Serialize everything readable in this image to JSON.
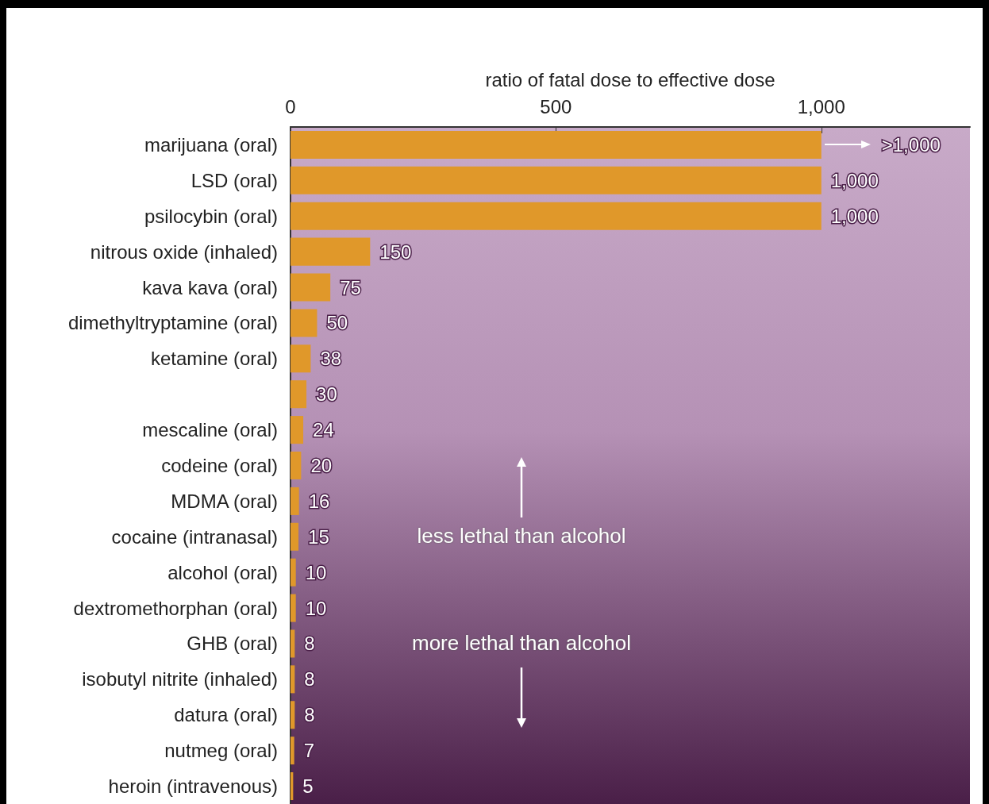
{
  "chart_data": {
    "type": "bar",
    "orientation": "horizontal",
    "xlabel": "ratio of fatal dose to effective dose",
    "categories": [
      "marijuana (oral)",
      "LSD (oral)",
      "psilocybin (oral)",
      "nitrous oxide (inhaled)",
      "kava kava (oral)",
      "dimethyltryptamine (oral)",
      "ketamine (oral)",
      null,
      "mescaline (oral)",
      "codeine (oral)",
      "MDMA (oral)",
      "cocaine (intranasal)",
      "alcohol (oral)",
      "dextromethorphan (oral)",
      "GHB (oral)",
      "isobutyl nitrite (inhaled)",
      "datura (oral)",
      "nutmeg (oral)",
      "heroin (intravenous)"
    ],
    "values": [
      1000,
      1000,
      1000,
      150,
      75,
      50,
      38,
      30,
      24,
      20,
      16,
      15,
      10,
      10,
      8,
      8,
      8,
      7,
      5
    ],
    "value_labels": [
      ">1,000",
      "1,000",
      "1,000",
      "150",
      "75",
      "50",
      "38",
      "30",
      "24",
      "20",
      "16",
      "15",
      "10",
      "10",
      "8",
      "8",
      "8",
      "7",
      "5"
    ],
    "color": "#e0982a",
    "xlim": [
      0,
      1280
    ],
    "xticks": [
      0,
      500,
      {
        "value": 1000,
        "label": "1,000"
      }
    ],
    "annotations": [
      "less lethal than alcohol",
      "more lethal than alcohol"
    ],
    "grid": false
  }
}
